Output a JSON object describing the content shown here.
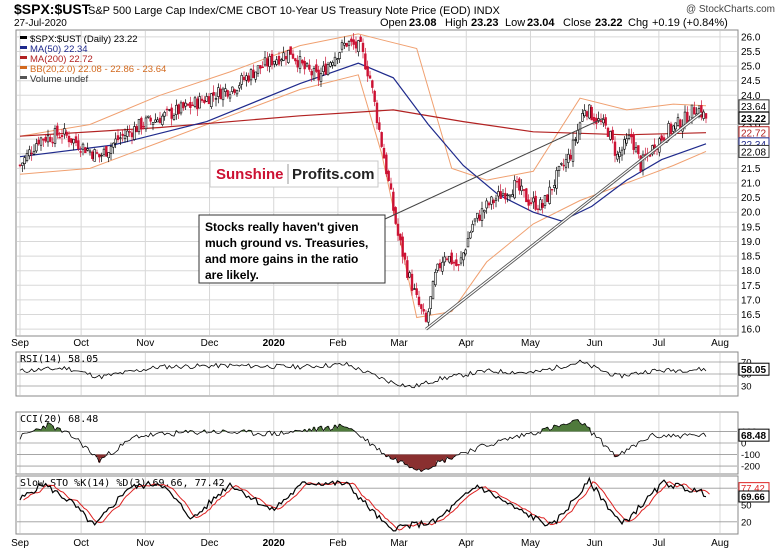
{
  "header": {
    "symbol": "$SPX:$UST",
    "description": "S&P 500 Large Cap Index/CME CBOT 10-Year US Treasury Note Price (EOD) INDX",
    "watermark": "@ StockCharts.com",
    "date": "27-Jul-2020",
    "ohlc": {
      "open_label": "Open",
      "open": "23.08",
      "high_label": "High",
      "high": "23.23",
      "low_label": "Low",
      "low": "23.04",
      "close_label": "Close",
      "close": "23.22",
      "chg_label": "Chg",
      "chg": "+0.19 (+0.84%)"
    }
  },
  "legend": [
    {
      "text": "$SPX:$UST (Daily) 23.22",
      "color": "#000000"
    },
    {
      "text": "MA(50) 22.34",
      "color": "#1f2a8c"
    },
    {
      "text": "MA(200) 22.72",
      "color": "#b22222"
    },
    {
      "text": "BB(20,2.0) 22.08 - 22.86 - 23.64",
      "color": "#d2691e"
    },
    {
      "text": "Volume undef",
      "color": "#555555"
    }
  ],
  "logo": {
    "part1": "Sunshine",
    "part2": "Profits.com"
  },
  "annotation": {
    "lines": [
      "Stocks really haven't given",
      "much ground vs. Treasuries,",
      "and more gains in the ratio",
      "are likely."
    ]
  },
  "colors": {
    "up": "#000000",
    "down": "#cc1133",
    "ma50": "#1f2a8c",
    "ma200": "#b22222",
    "bb": "#f0a070",
    "grid": "#d8d8d8",
    "osc_pos": "#4f7a3c",
    "osc_neg": "#8a3030",
    "sto_k": "#000000",
    "sto_d": "#dd2222"
  },
  "chart_data": [
    {
      "type": "candlestick",
      "title": "$SPX:$UST (Daily)",
      "x_labels": [
        "Sep",
        "Oct",
        "Nov",
        "Dec",
        "2020",
        "Feb",
        "Mar",
        "Apr",
        "May",
        "Jun",
        "Jul",
        "Aug"
      ],
      "y_ticks": [
        "16.0",
        "16.5",
        "17.0",
        "17.5",
        "18.0",
        "18.5",
        "19.0",
        "19.5",
        "20.0",
        "20.5",
        "21.0",
        "21.5",
        "22.0",
        "22.5",
        "23.0",
        "23.5",
        "24.0",
        "24.5",
        "25.0",
        "25.5",
        "26.0"
      ],
      "ylim": [
        15.8,
        26.2
      ],
      "price_tags": [
        {
          "value": 23.64,
          "label": "23.64",
          "style": "outline"
        },
        {
          "value": 23.22,
          "label": "23.22",
          "style": "bold"
        },
        {
          "value": 22.72,
          "label": "22.72",
          "style": "red"
        },
        {
          "value": 22.34,
          "label": "22.34",
          "style": "blue"
        },
        {
          "value": 22.08,
          "label": "22.08",
          "style": "outline"
        }
      ],
      "close_approx": [
        {
          "x": 0,
          "y": 21.6
        },
        {
          "x": 8,
          "y": 22.5
        },
        {
          "x": 18,
          "y": 22.7
        },
        {
          "x": 26,
          "y": 22.3
        },
        {
          "x": 34,
          "y": 21.9
        },
        {
          "x": 42,
          "y": 22.5
        },
        {
          "x": 52,
          "y": 23.0
        },
        {
          "x": 62,
          "y": 23.3
        },
        {
          "x": 72,
          "y": 23.6
        },
        {
          "x": 82,
          "y": 24.0
        },
        {
          "x": 92,
          "y": 24.3
        },
        {
          "x": 100,
          "y": 24.8
        },
        {
          "x": 108,
          "y": 25.2
        },
        {
          "x": 116,
          "y": 25.5
        },
        {
          "x": 122,
          "y": 24.9
        },
        {
          "x": 128,
          "y": 24.6
        },
        {
          "x": 134,
          "y": 25.3
        },
        {
          "x": 140,
          "y": 25.8
        },
        {
          "x": 146,
          "y": 25.6
        },
        {
          "x": 150,
          "y": 24.6
        },
        {
          "x": 154,
          "y": 22.8
        },
        {
          "x": 158,
          "y": 21.0
        },
        {
          "x": 162,
          "y": 19.2
        },
        {
          "x": 166,
          "y": 18.0
        },
        {
          "x": 170,
          "y": 17.0
        },
        {
          "x": 174,
          "y": 16.2
        },
        {
          "x": 178,
          "y": 17.8
        },
        {
          "x": 182,
          "y": 18.6
        },
        {
          "x": 188,
          "y": 18.1
        },
        {
          "x": 194,
          "y": 19.6
        },
        {
          "x": 200,
          "y": 20.2
        },
        {
          "x": 206,
          "y": 20.6
        },
        {
          "x": 212,
          "y": 20.9
        },
        {
          "x": 218,
          "y": 20.4
        },
        {
          "x": 224,
          "y": 20.2
        },
        {
          "x": 230,
          "y": 21.2
        },
        {
          "x": 236,
          "y": 22.0
        },
        {
          "x": 242,
          "y": 23.6
        },
        {
          "x": 248,
          "y": 23.1
        },
        {
          "x": 252,
          "y": 22.8
        },
        {
          "x": 256,
          "y": 21.9
        },
        {
          "x": 262,
          "y": 22.6
        },
        {
          "x": 266,
          "y": 21.6
        },
        {
          "x": 272,
          "y": 22.3
        },
        {
          "x": 278,
          "y": 22.8
        },
        {
          "x": 284,
          "y": 23.1
        },
        {
          "x": 290,
          "y": 23.6
        },
        {
          "x": 294,
          "y": 23.22
        }
      ],
      "ma50_approx": [
        {
          "x": 0,
          "y": 21.9
        },
        {
          "x": 40,
          "y": 22.3
        },
        {
          "x": 80,
          "y": 23.1
        },
        {
          "x": 120,
          "y": 24.4
        },
        {
          "x": 145,
          "y": 25.1
        },
        {
          "x": 160,
          "y": 24.6
        },
        {
          "x": 175,
          "y": 23.0
        },
        {
          "x": 190,
          "y": 21.6
        },
        {
          "x": 205,
          "y": 20.6
        },
        {
          "x": 220,
          "y": 20.0
        },
        {
          "x": 232,
          "y": 19.7
        },
        {
          "x": 245,
          "y": 20.2
        },
        {
          "x": 260,
          "y": 21.1
        },
        {
          "x": 275,
          "y": 21.8
        },
        {
          "x": 294,
          "y": 22.34
        }
      ],
      "ma200_approx": [
        {
          "x": 0,
          "y": 22.6
        },
        {
          "x": 60,
          "y": 22.9
        },
        {
          "x": 120,
          "y": 23.3
        },
        {
          "x": 160,
          "y": 23.5
        },
        {
          "x": 190,
          "y": 23.1
        },
        {
          "x": 220,
          "y": 22.75
        },
        {
          "x": 260,
          "y": 22.65
        },
        {
          "x": 294,
          "y": 22.72
        }
      ],
      "bb_upper_approx": [
        {
          "x": 0,
          "y": 22.6
        },
        {
          "x": 30,
          "y": 23.0
        },
        {
          "x": 60,
          "y": 24.0
        },
        {
          "x": 90,
          "y": 24.8
        },
        {
          "x": 120,
          "y": 25.7
        },
        {
          "x": 145,
          "y": 26.1
        },
        {
          "x": 155,
          "y": 25.9
        },
        {
          "x": 170,
          "y": 25.6
        },
        {
          "x": 185,
          "y": 21.5
        },
        {
          "x": 200,
          "y": 21.1
        },
        {
          "x": 220,
          "y": 21.4
        },
        {
          "x": 240,
          "y": 23.9
        },
        {
          "x": 260,
          "y": 23.5
        },
        {
          "x": 280,
          "y": 23.7
        },
        {
          "x": 294,
          "y": 23.64
        }
      ],
      "bb_lower_approx": [
        {
          "x": 0,
          "y": 21.3
        },
        {
          "x": 30,
          "y": 21.5
        },
        {
          "x": 60,
          "y": 22.4
        },
        {
          "x": 90,
          "y": 23.3
        },
        {
          "x": 120,
          "y": 24.2
        },
        {
          "x": 145,
          "y": 24.7
        },
        {
          "x": 155,
          "y": 22.0
        },
        {
          "x": 170,
          "y": 16.4
        },
        {
          "x": 185,
          "y": 16.6
        },
        {
          "x": 200,
          "y": 18.3
        },
        {
          "x": 220,
          "y": 19.6
        },
        {
          "x": 240,
          "y": 20.4
        },
        {
          "x": 260,
          "y": 21.0
        },
        {
          "x": 280,
          "y": 21.6
        },
        {
          "x": 294,
          "y": 22.08
        }
      ],
      "trendline": {
        "from": {
          "x": 174,
          "y": 16.0
        },
        "to": {
          "x": 292,
          "y": 23.4
        }
      }
    },
    {
      "type": "line",
      "title": "RSI(14) 58.05",
      "y_ticks": [
        "70",
        "50",
        "30"
      ],
      "ylim": [
        15,
        85
      ],
      "value_tag": "58.05",
      "values_approx": [
        {
          "x": 0,
          "y": 55
        },
        {
          "x": 20,
          "y": 60
        },
        {
          "x": 34,
          "y": 45
        },
        {
          "x": 60,
          "y": 62
        },
        {
          "x": 90,
          "y": 64
        },
        {
          "x": 120,
          "y": 62
        },
        {
          "x": 140,
          "y": 66
        },
        {
          "x": 158,
          "y": 38
        },
        {
          "x": 168,
          "y": 28
        },
        {
          "x": 180,
          "y": 42
        },
        {
          "x": 200,
          "y": 55
        },
        {
          "x": 220,
          "y": 52
        },
        {
          "x": 240,
          "y": 70
        },
        {
          "x": 256,
          "y": 46
        },
        {
          "x": 270,
          "y": 55
        },
        {
          "x": 294,
          "y": 58
        }
      ]
    },
    {
      "type": "line",
      "title": "CCI(20) 68.48",
      "y_ticks": [
        "100",
        "0",
        "-100",
        "-200"
      ],
      "ylim": [
        -260,
        260
      ],
      "value_tag": "68.48",
      "values_approx": [
        {
          "x": 0,
          "y": 50
        },
        {
          "x": 12,
          "y": 160
        },
        {
          "x": 24,
          "y": 40
        },
        {
          "x": 34,
          "y": -150
        },
        {
          "x": 50,
          "y": 60
        },
        {
          "x": 80,
          "y": 100
        },
        {
          "x": 110,
          "y": 80
        },
        {
          "x": 140,
          "y": 150
        },
        {
          "x": 158,
          "y": -120
        },
        {
          "x": 172,
          "y": -230
        },
        {
          "x": 190,
          "y": -80
        },
        {
          "x": 210,
          "y": 40
        },
        {
          "x": 240,
          "y": 190
        },
        {
          "x": 256,
          "y": -120
        },
        {
          "x": 270,
          "y": 60
        },
        {
          "x": 294,
          "y": 68
        }
      ]
    },
    {
      "type": "line",
      "title": "Slow STO %K(14) %D(3) 69.66, 77.42",
      "y_ticks": [
        "80",
        "50",
        "20"
      ],
      "ylim": [
        0,
        100
      ],
      "value_tags": [
        "77.42",
        "69.66"
      ],
      "k_values_approx": [
        {
          "x": 0,
          "y": 60
        },
        {
          "x": 10,
          "y": 88
        },
        {
          "x": 22,
          "y": 55
        },
        {
          "x": 32,
          "y": 12
        },
        {
          "x": 46,
          "y": 80
        },
        {
          "x": 60,
          "y": 90
        },
        {
          "x": 74,
          "y": 25
        },
        {
          "x": 90,
          "y": 88
        },
        {
          "x": 108,
          "y": 40
        },
        {
          "x": 122,
          "y": 90
        },
        {
          "x": 140,
          "y": 88
        },
        {
          "x": 158,
          "y": 8
        },
        {
          "x": 178,
          "y": 20
        },
        {
          "x": 196,
          "y": 85
        },
        {
          "x": 214,
          "y": 40
        },
        {
          "x": 228,
          "y": 12
        },
        {
          "x": 244,
          "y": 92
        },
        {
          "x": 258,
          "y": 15
        },
        {
          "x": 276,
          "y": 90
        },
        {
          "x": 294,
          "y": 70
        }
      ]
    }
  ]
}
